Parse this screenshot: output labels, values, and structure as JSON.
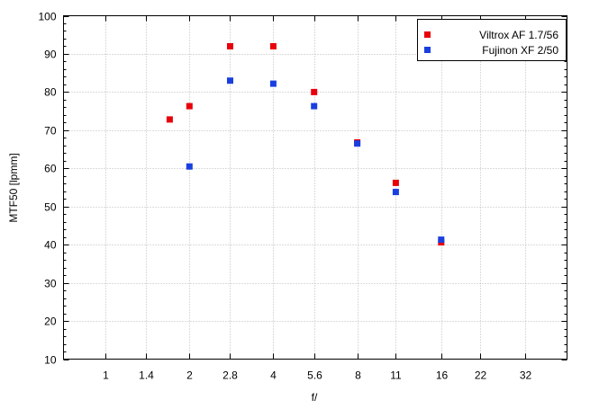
{
  "chart_data": {
    "type": "scatter",
    "title": "",
    "xlabel": "f/",
    "ylabel": "MTF50 [lpmm]",
    "x_scale": "log2",
    "x_ticks": [
      "1",
      "1.4",
      "2",
      "2.8",
      "4",
      "5.6",
      "8",
      "11",
      "16",
      "22",
      "32"
    ],
    "x_tick_values": [
      1,
      1.4,
      2,
      2.8,
      4,
      5.6,
      8,
      11,
      16,
      22,
      32
    ],
    "xlim": [
      0.707,
      45.25
    ],
    "ylim": [
      10,
      100
    ],
    "y_ticks": [
      10,
      20,
      30,
      40,
      50,
      60,
      70,
      80,
      90,
      100
    ],
    "y_ticks_text": [
      "10",
      "20",
      "30",
      "40",
      "50",
      "60",
      "70",
      "80",
      "90",
      "100"
    ],
    "grid": true,
    "legend_position": "top-right",
    "series": [
      {
        "name": "Viltrox AF 1.7/56",
        "color": "#e8000b",
        "x": [
          1.7,
          2,
          2.8,
          4,
          5.6,
          8,
          11,
          16
        ],
        "y": [
          72.8,
          76.3,
          92.0,
          92.0,
          80.0,
          66.8,
          56.2,
          40.6
        ]
      },
      {
        "name": "Fujinon XF 2/50",
        "color": "#1a3fe0",
        "x": [
          2,
          2.8,
          4,
          5.6,
          8,
          11,
          16
        ],
        "y": [
          60.5,
          83.0,
          82.2,
          76.3,
          66.5,
          53.8,
          41.3
        ]
      }
    ]
  }
}
